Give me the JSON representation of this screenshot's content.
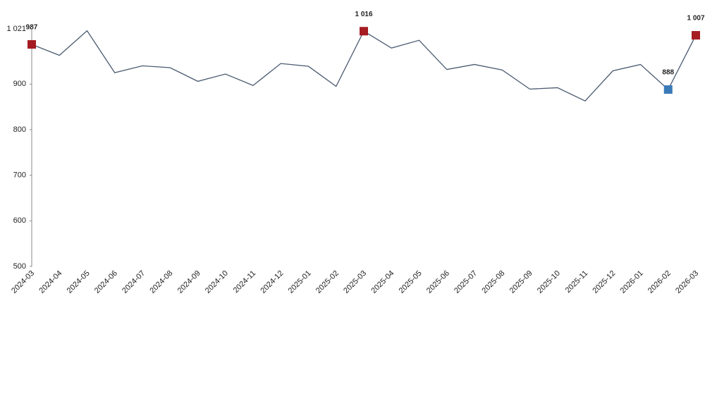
{
  "chart_data": {
    "type": "line",
    "categories": [
      "2024-03",
      "2024-04",
      "2024-05",
      "2024-06",
      "2024-07",
      "2024-08",
      "2024-09",
      "2024-10",
      "2024-11",
      "2024-12",
      "2025-01",
      "2025-02",
      "2025-03",
      "2025-04",
      "2025-05",
      "2025-06",
      "2025-07",
      "2025-08",
      "2025-09",
      "2025-10",
      "2025-11",
      "2025-12",
      "2026-01",
      "2026-02",
      "2026-03"
    ],
    "values": [
      987,
      963,
      1017,
      925,
      940,
      936,
      906,
      922,
      897,
      945,
      939,
      895,
      1016,
      979,
      996,
      932,
      943,
      931,
      889,
      892,
      863,
      929,
      943,
      888,
      1007
    ],
    "value_labels": [
      "987",
      null,
      null,
      null,
      null,
      null,
      null,
      null,
      null,
      null,
      null,
      null,
      "1 016",
      null,
      null,
      null,
      null,
      null,
      null,
      null,
      null,
      null,
      null,
      "888",
      "1 007"
    ],
    "marker_colors": [
      "#a51c22",
      null,
      null,
      null,
      null,
      null,
      null,
      null,
      null,
      null,
      null,
      null,
      "#a51c22",
      null,
      null,
      null,
      null,
      null,
      null,
      null,
      null,
      null,
      null,
      "#3a7ab8",
      "#a51c22"
    ],
    "color": "#4a5a70",
    "ylim": [
      500,
      1021
    ],
    "yticks": [
      500,
      600,
      700,
      800,
      900,
      {
        "value": 1021,
        "label": "1 021"
      }
    ]
  }
}
